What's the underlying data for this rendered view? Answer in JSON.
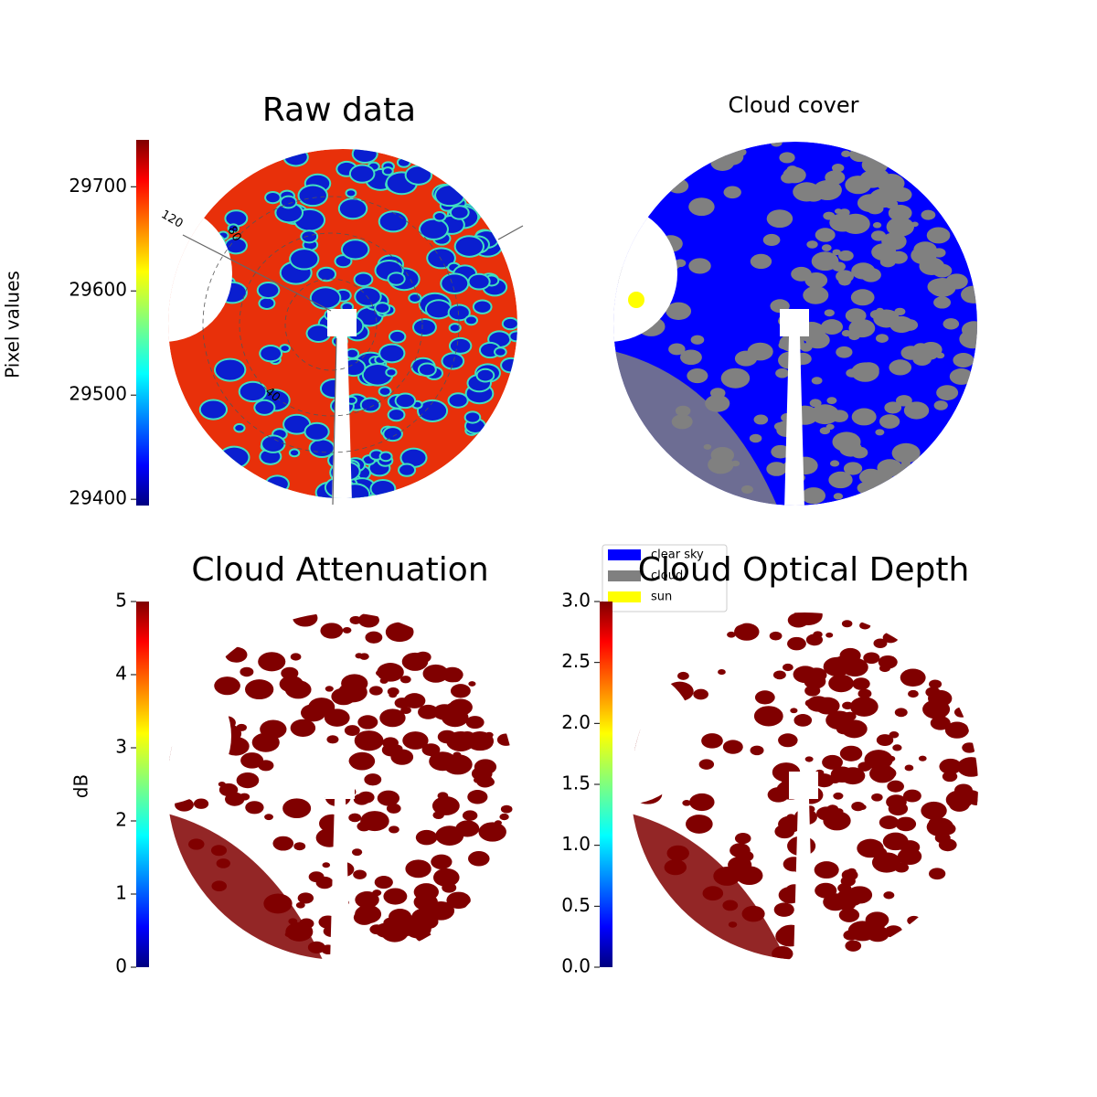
{
  "chart_data": [
    {
      "type": "heatmap",
      "title": "Raw data",
      "ylabel": "Pixel values",
      "colormap": "jet",
      "ylim": [
        29394,
        29745
      ],
      "yticks": [
        29400,
        29500,
        29600,
        29700
      ],
      "annotations": [
        "120",
        "80",
        "40"
      ]
    },
    {
      "type": "heatmap",
      "title": "Cloud cover",
      "series": [
        {
          "name": "clear sky",
          "color": "#0000ff"
        },
        {
          "name": "cloud",
          "color": "#808080"
        },
        {
          "name": "sun",
          "color": "#ffff00"
        }
      ]
    },
    {
      "type": "heatmap",
      "title": "Cloud Attenuation",
      "ylabel": "dB",
      "colormap": "jet",
      "ylim": [
        0,
        5
      ],
      "yticks": [
        0,
        1,
        2,
        3,
        4,
        5
      ]
    },
    {
      "type": "heatmap",
      "title": "Cloud Optical Depth",
      "colormap": "jet",
      "ylim": [
        0,
        3
      ],
      "yticks": [
        {
          "value": 0,
          "label": "0.0"
        },
        0.5,
        {
          "value": 1,
          "label": "1.0"
        },
        1.5,
        {
          "value": 2,
          "label": "2.0"
        },
        2.5,
        {
          "value": 3,
          "label": "3.0"
        }
      ]
    }
  ]
}
